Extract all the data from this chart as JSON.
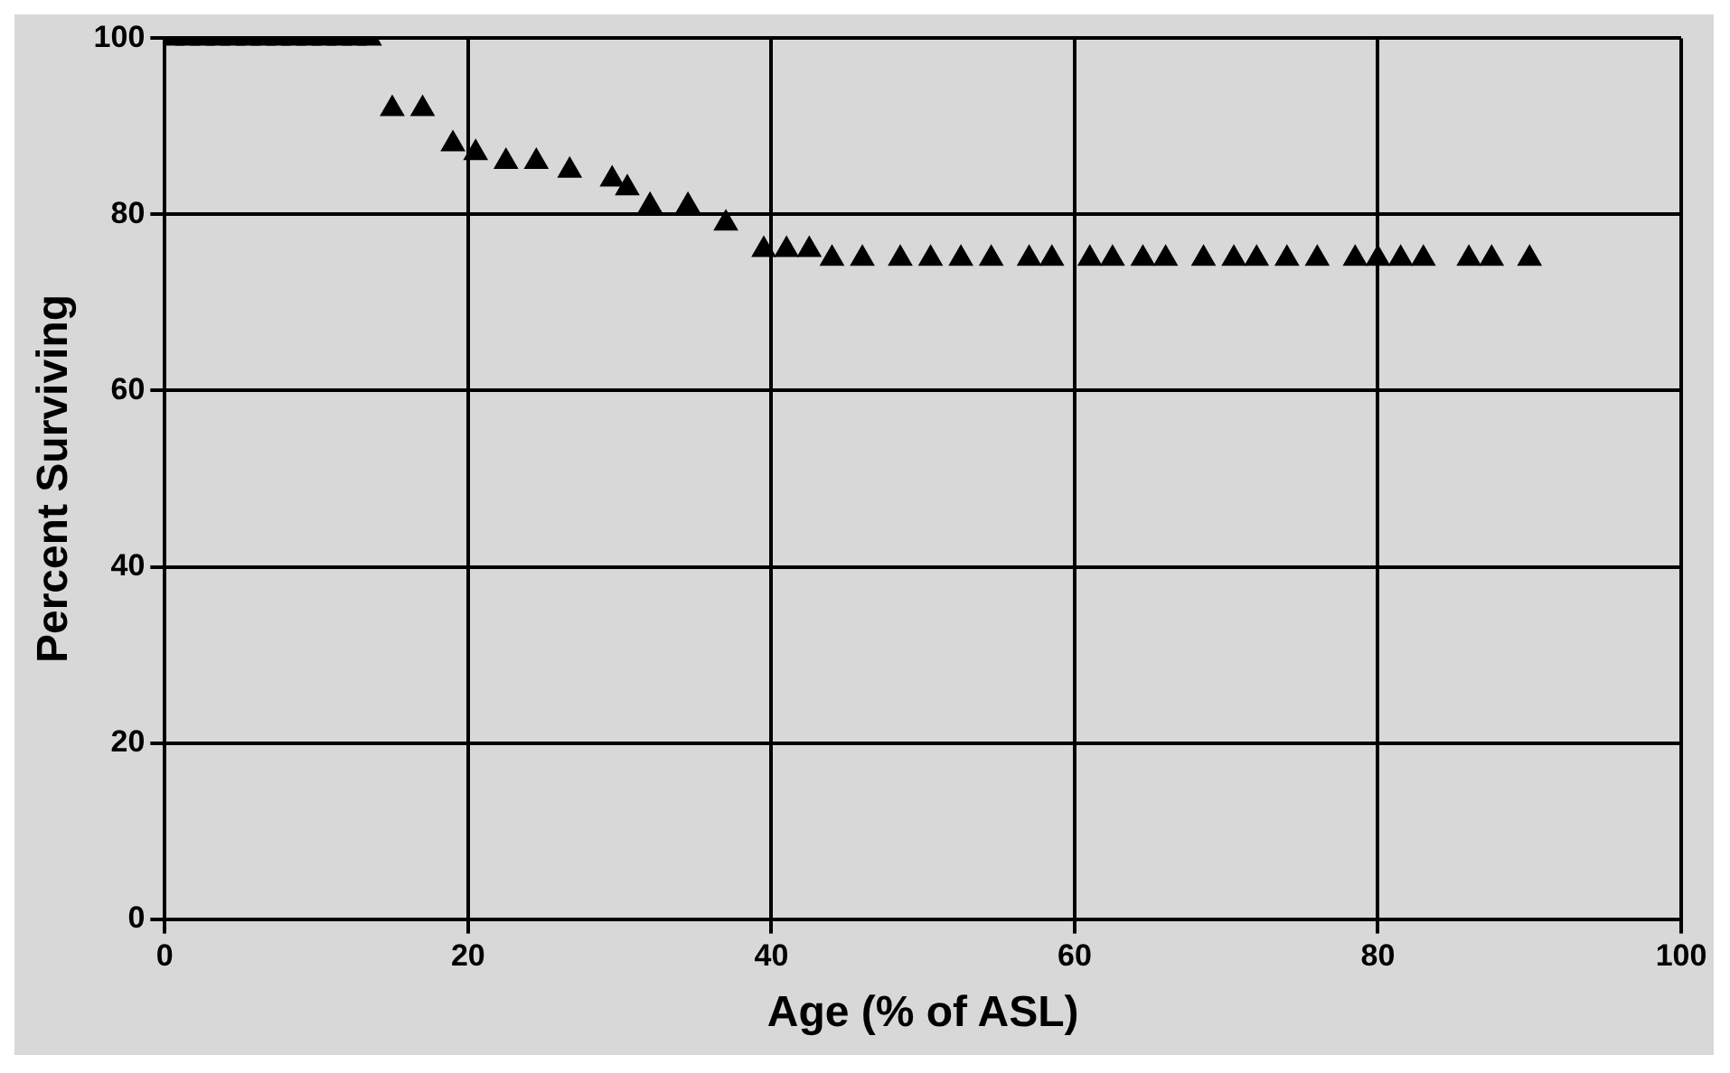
{
  "chart_data": {
    "type": "scatter",
    "xlabel": "Age (% of ASL)",
    "ylabel": "Percent Surviving",
    "xlim": [
      0,
      100
    ],
    "xticks": [
      0,
      20,
      40,
      60,
      80,
      100
    ],
    "ylim": [
      0,
      100
    ],
    "yticks": [
      0,
      20,
      40,
      60,
      80,
      100
    ],
    "grid": true,
    "marker": "triangle",
    "series": [
      {
        "color": "#000000",
        "x": [
          0.5,
          1.5,
          2.5,
          3.5,
          4.5,
          5.5,
          6.5,
          7.5,
          8.5,
          9.5,
          10.5,
          11.5,
          12.5,
          13.5,
          15,
          17,
          19,
          20.5,
          22.5,
          24.5,
          26.7,
          29.5,
          30.5,
          32,
          34.5,
          37,
          39.5,
          41,
          42.5,
          44,
          46,
          48.5,
          50.5,
          52.5,
          54.5,
          57,
          58.5,
          61,
          62.5,
          64.5,
          66,
          68.5,
          70.5,
          72,
          74,
          76,
          78.5,
          80,
          81.5,
          83,
          86,
          87.5,
          90
        ],
        "values": [
          100,
          100,
          100,
          100,
          100,
          100,
          100,
          100,
          100,
          100,
          100,
          100,
          100,
          100,
          92,
          92,
          88,
          87,
          86,
          86,
          85,
          84,
          83,
          81,
          81,
          79,
          76,
          76,
          76,
          75,
          75,
          75,
          75,
          75,
          75,
          75,
          75,
          75,
          75,
          75,
          75,
          75,
          75,
          75,
          75,
          75,
          75,
          75,
          75,
          75,
          75,
          75,
          75
        ]
      }
    ]
  }
}
